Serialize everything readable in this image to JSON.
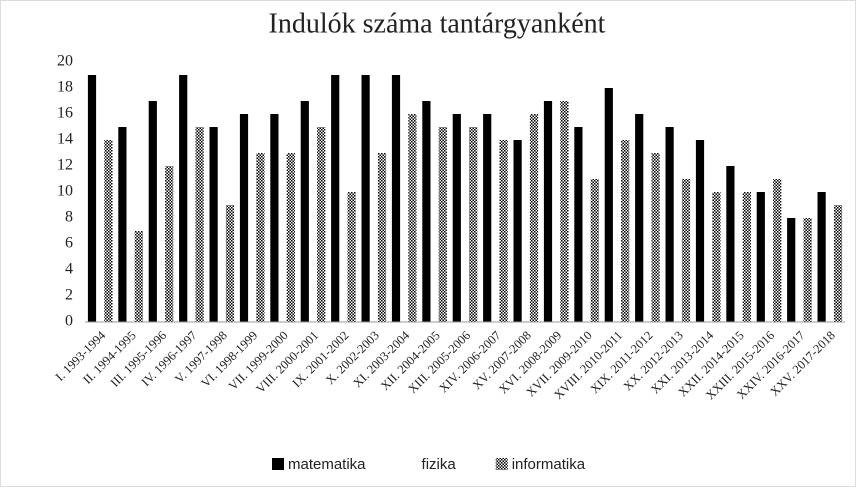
{
  "chart_data": {
    "type": "bar",
    "title": "Indulók száma tantárgyanként",
    "categories": [
      "I. 1993-1994",
      "II. 1994-1995",
      "III. 1995-1996",
      "IV. 1996-1997",
      "V. 1997-1998",
      "VI. 1998-1999",
      "VII. 1999-2000",
      "VIII. 2000-2001",
      "IX. 2001-2002",
      "X. 2002-2003",
      "XI. 2003-2004",
      "XII. 2004-2005",
      "XIII. 2005-2006",
      "XIV. 2006-2007",
      "XV. 2007-2008",
      "XVI. 2008-2009",
      "XVII. 2009-2010",
      "XVIII. 2010-2011",
      "XIX. 2011-2012",
      "XX. 2012-2013",
      "XXI. 2013-2014",
      "XXII. 2014-2015",
      "XXIII. 2015-2016",
      "XXIV. 2016-2017",
      "XXV. 2017-2018"
    ],
    "series": [
      {
        "name": "matematika",
        "color": "#000000",
        "values": [
          19,
          15,
          17,
          19,
          15,
          16,
          16,
          17,
          19,
          19,
          19,
          17,
          16,
          16,
          14,
          17,
          15,
          18,
          16,
          15,
          14,
          12,
          10,
          8,
          10
        ]
      },
      {
        "name": "fizika",
        "color": "#ffffff",
        "values": [
          null,
          null,
          null,
          null,
          null,
          null,
          null,
          null,
          null,
          null,
          null,
          null,
          null,
          null,
          null,
          null,
          null,
          null,
          null,
          null,
          null,
          null,
          null,
          null,
          null
        ]
      },
      {
        "name": "informatika",
        "color": "#000000",
        "fill": "checkered",
        "values": [
          14,
          7,
          12,
          15,
          9,
          13,
          13,
          15,
          10,
          13,
          16,
          15,
          15,
          14,
          16,
          17,
          11,
          14,
          13,
          11,
          10,
          10,
          11,
          8,
          9
        ]
      }
    ],
    "ylim": [
      0,
      20
    ],
    "yticks": [
      0,
      2,
      4,
      6,
      8,
      10,
      12,
      14,
      16,
      18,
      20
    ],
    "legend": "bottom"
  }
}
